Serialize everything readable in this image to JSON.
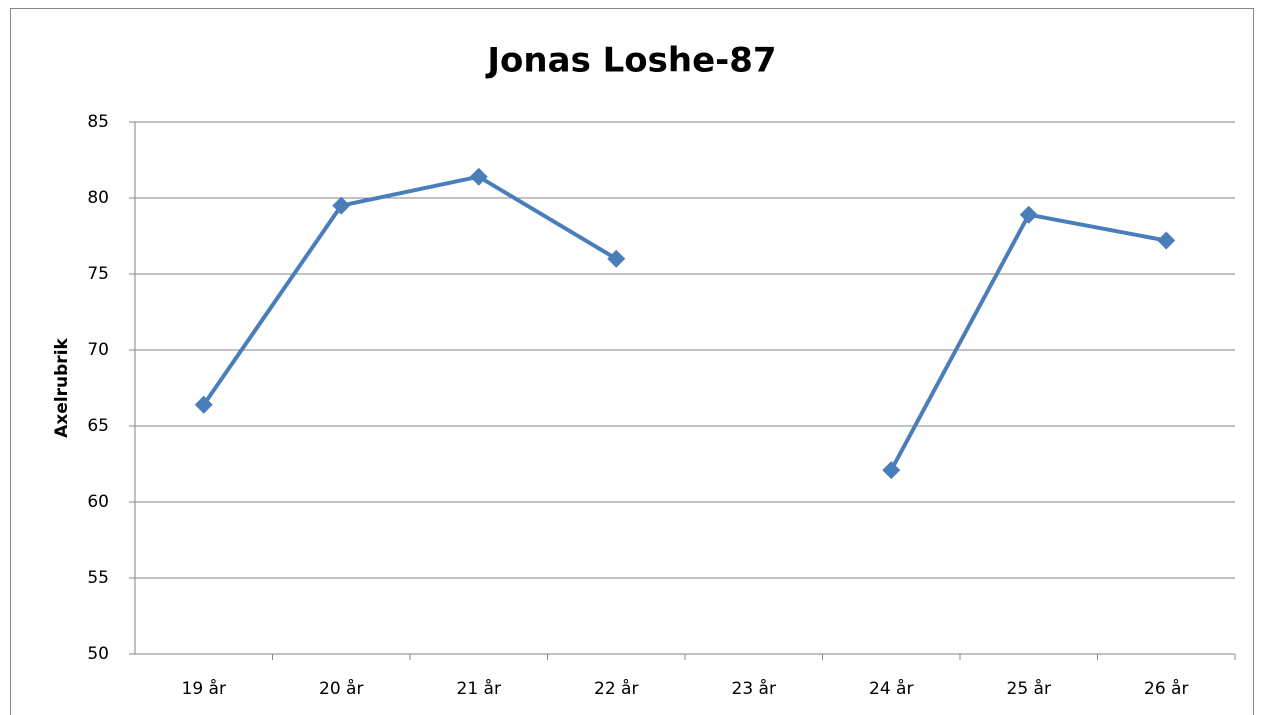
{
  "chart_data": {
    "type": "line",
    "title": "Jonas Loshe-87",
    "y_label": "Axelrubrik",
    "categories": [
      "19 år",
      "20 år",
      "21 år",
      "22 år",
      "23 år",
      "24 år",
      "25 år",
      "26 år"
    ],
    "series": [
      {
        "name": "Jonas Loshe-87",
        "color": "#4a7ebb",
        "values": [
          66.4,
          79.5,
          81.4,
          76.0,
          null,
          62.1,
          78.9,
          77.2
        ]
      }
    ],
    "ylim": [
      50,
      85
    ],
    "yticks": [
      50,
      55,
      60,
      65,
      70,
      75,
      80,
      85
    ],
    "grid": true,
    "legend": false
  }
}
